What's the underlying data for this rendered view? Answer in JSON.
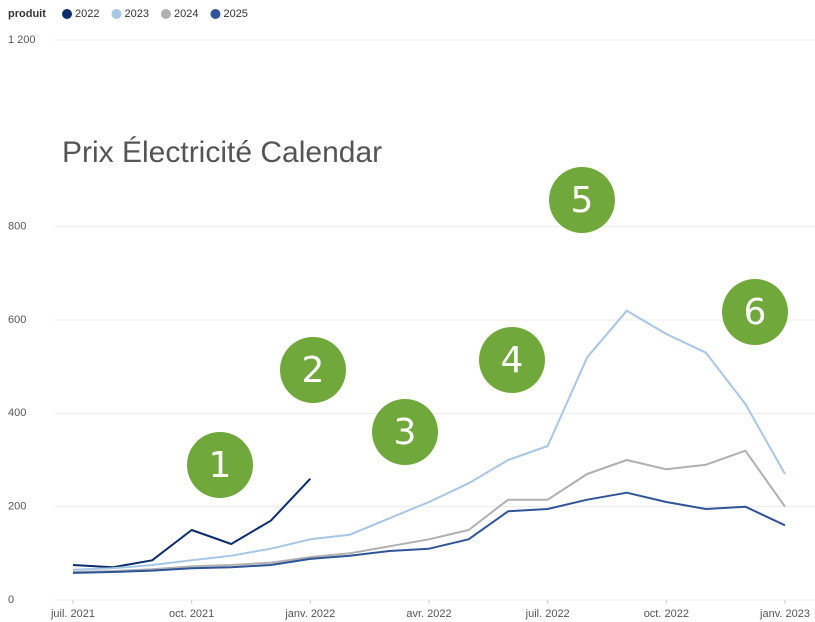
{
  "chart_data": {
    "type": "line",
    "title": "Prix Électricité Calendar",
    "legend_title": "produit",
    "x": [
      "2021-07",
      "2021-08",
      "2021-09",
      "2021-10",
      "2021-11",
      "2021-12",
      "2022-01",
      "2022-02",
      "2022-03",
      "2022-04",
      "2022-05",
      "2022-06",
      "2022-07",
      "2022-08",
      "2022-09",
      "2022-10",
      "2022-11",
      "2022-12",
      "2023-01"
    ],
    "series": [
      {
        "name": "2022",
        "color": "#0b2d6b",
        "values": [
          75,
          70,
          85,
          150,
          120,
          170,
          260,
          null,
          null,
          null,
          null,
          null,
          null,
          null,
          null,
          null,
          null,
          null,
          null
        ]
      },
      {
        "name": "2023",
        "color": "#a8c6e6",
        "values": [
          65,
          68,
          75,
          85,
          95,
          110,
          130,
          140,
          175,
          210,
          250,
          300,
          330,
          520,
          620,
          570,
          530,
          420,
          270
        ]
      },
      {
        "name": "2024",
        "color": "#b0b0b0",
        "values": [
          60,
          62,
          66,
          72,
          75,
          80,
          92,
          100,
          115,
          130,
          150,
          215,
          215,
          270,
          300,
          280,
          290,
          320,
          200
        ]
      },
      {
        "name": "2025",
        "color": "#2f5597",
        "values": [
          58,
          60,
          63,
          68,
          70,
          75,
          88,
          95,
          105,
          110,
          130,
          190,
          195,
          215,
          230,
          210,
          195,
          200,
          160
        ]
      }
    ],
    "ylim": [
      0,
      1200
    ],
    "yticks": [
      0,
      200,
      400,
      600,
      800,
      {
        "value": 1200,
        "label": "1 200"
      }
    ],
    "xticks": [
      {
        "value": "2021-07",
        "label": "juil. 2021"
      },
      {
        "value": "2021-10",
        "label": "oct. 2021"
      },
      {
        "value": "2022-01",
        "label": "janv. 2022"
      },
      {
        "value": "2022-04",
        "label": "avr. 2022"
      },
      {
        "value": "2022-07",
        "label": "juil. 2022"
      },
      {
        "value": "2022-10",
        "label": "oct. 2022"
      },
      {
        "value": "2023-01",
        "label": "janv. 2023"
      }
    ],
    "grid": true,
    "annotations": [
      "1",
      "2",
      "3",
      "4",
      "5",
      "6"
    ],
    "annotation_color": "#70a83b"
  }
}
